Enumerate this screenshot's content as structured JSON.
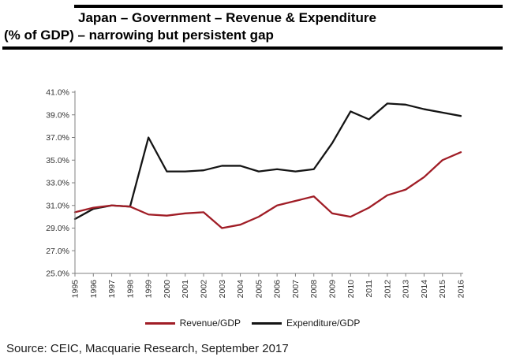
{
  "title": {
    "line1": "Japan – Government – Revenue & Expenditure",
    "line2": "(% of GDP) – narrowing but persistent gap"
  },
  "source": "Source: CEIC, Macquarie Research, September 2017",
  "colors": {
    "revenue": "#a01d26",
    "expenditure": "#141414",
    "axis": "#808080",
    "tick_text": "#333333"
  },
  "chart_data": {
    "type": "line",
    "x": [
      "1995",
      "1996",
      "1997",
      "1998",
      "1999",
      "2000",
      "2001",
      "2002",
      "2003",
      "2004",
      "2005",
      "2006",
      "2007",
      "2008",
      "2009",
      "2010",
      "2011",
      "2012",
      "2013",
      "2014",
      "2015",
      "2016"
    ],
    "series": [
      {
        "name": "Revenue/GDP",
        "color": "#a01d26",
        "values": [
          30.4,
          30.8,
          31.0,
          30.9,
          30.2,
          30.1,
          30.3,
          30.4,
          29.0,
          29.3,
          30.0,
          31.0,
          31.4,
          31.8,
          30.3,
          30.0,
          30.8,
          31.9,
          32.4,
          33.5,
          35.0,
          35.7
        ]
      },
      {
        "name": "Expenditure/GDP",
        "color": "#141414",
        "values": [
          29.8,
          30.7,
          31.0,
          30.9,
          37.0,
          34.0,
          34.0,
          34.1,
          34.5,
          34.5,
          34.0,
          34.2,
          34.0,
          34.2,
          36.5,
          39.3,
          38.6,
          40.0,
          39.9,
          39.5,
          39.2,
          38.9
        ]
      }
    ],
    "ylim": [
      25,
      41
    ],
    "ytick_step": 2,
    "ytick_labels": [
      "25.0%",
      "27.0%",
      "29.0%",
      "31.0%",
      "33.0%",
      "35.0%",
      "37.0%",
      "39.0%",
      "41.0%"
    ],
    "grid": false,
    "legend_position": "bottom",
    "title": "Japan – Government – Revenue & Expenditure (% of GDP) – narrowing but persistent gap",
    "xlabel": "",
    "ylabel": ""
  }
}
